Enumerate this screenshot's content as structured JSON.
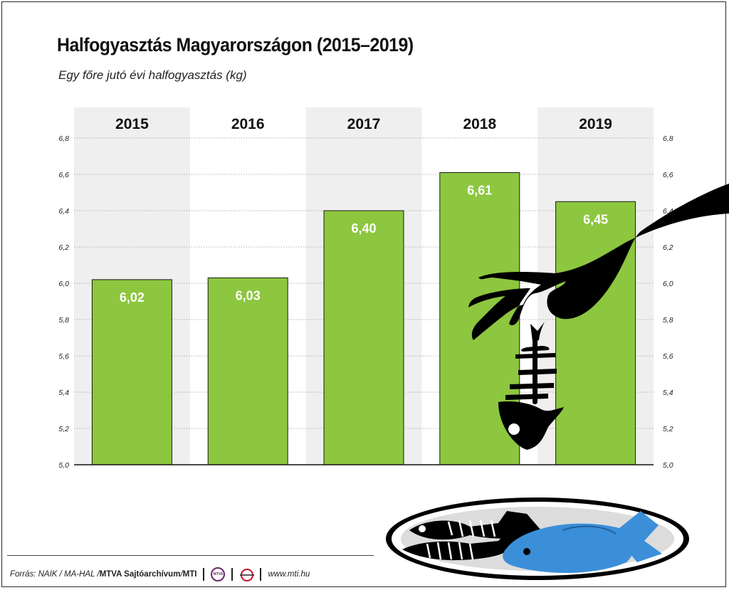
{
  "header": {
    "title": "Halfogyasztás Magyarországon (2015–2019)",
    "subtitle": "Egy főre jutó évi halfogyasztás (kg)"
  },
  "chart_data": {
    "type": "bar",
    "title": "Halfogyasztás Magyarországon (2015–2019)",
    "subtitle": "Egy főre jutó évi halfogyasztás (kg)",
    "categories": [
      "2015",
      "2016",
      "2017",
      "2018",
      "2019"
    ],
    "values": [
      6.02,
      6.03,
      6.4,
      6.61,
      6.45
    ],
    "value_labels": [
      "6,02",
      "6,03",
      "6,40",
      "6,61",
      "6,45"
    ],
    "ylim": [
      5.0,
      6.8
    ],
    "yticks": [
      5.0,
      5.2,
      5.4,
      5.6,
      5.8,
      6.0,
      6.2,
      6.4,
      6.6,
      6.8
    ],
    "ytick_labels": [
      "5,0",
      "5,2",
      "5,4",
      "5,6",
      "5,8",
      "6,0",
      "6,2",
      "6,4",
      "6,6",
      "6,8"
    ],
    "grid": true,
    "bar_color": "#8dc63f",
    "band_color": "#efefef"
  },
  "footer": {
    "source_prefix": "Forrás: NAIK / MA-HAL / ",
    "source_bold": "MTVA Sajtóarchívum",
    "source_sep": " / ",
    "source_mti": "MTI",
    "logo_mtva": "MTVA",
    "url": "www.mti.hu"
  },
  "illustration": {
    "hand_color": "#000000",
    "fish_color": "#3b8fd9",
    "plate_color": "#dedede"
  }
}
